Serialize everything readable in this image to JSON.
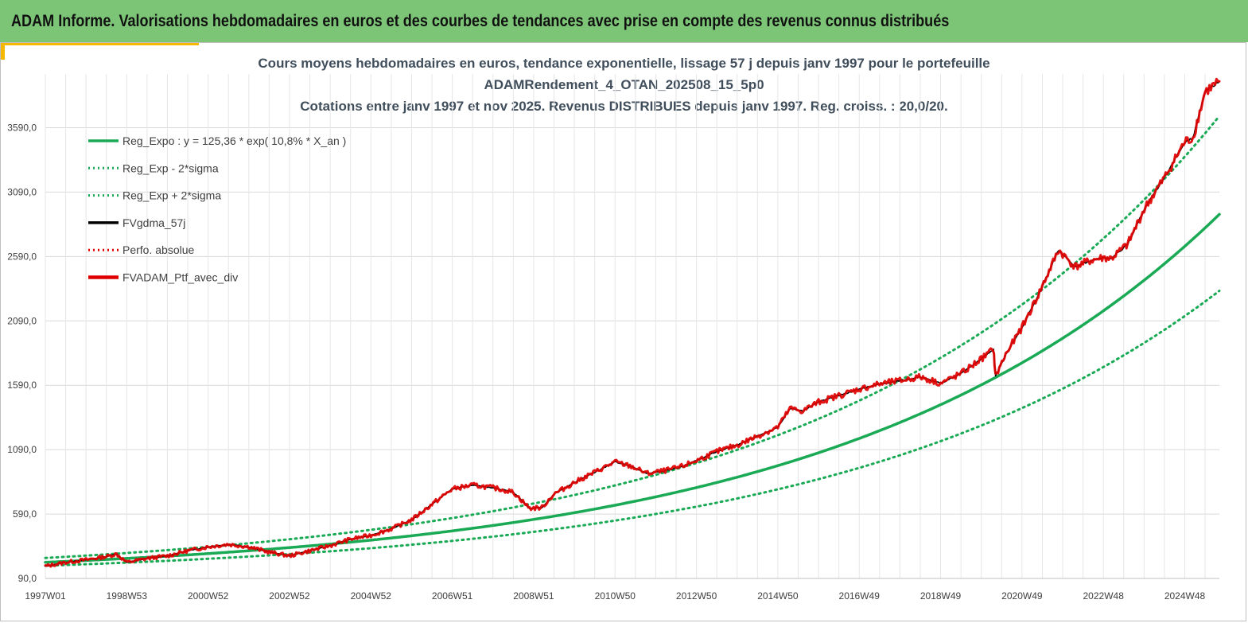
{
  "header": {
    "title": "ADAM Informe. Valorisations hebdomadaires en euros et des courbes de tendances avec prise en compte des revenus connus distribués"
  },
  "chart_data": {
    "type": "line",
    "title_lines": [
      "Cours moyens hebdomadaires  en euros, tendance exponentielle, lissage 57 j depuis janv 1997 pour le portefeuille",
      "ADAMRendement_4_OTAN_202508_15_5p0",
      "Cotations  entre janv 1997 et nov 2025. Revenus DISTRIBUES depuis janv 1997. Reg. croiss. : 20,0/20."
    ],
    "xlabel": "",
    "ylabel": "",
    "ylim": [
      90,
      3850
    ],
    "xlim": [
      1997.0,
      2025.85
    ],
    "x_tick_labels": [
      "1997W01",
      "1998W53",
      "2000W52",
      "2002W52",
      "2004W52",
      "2006W51",
      "2008W51",
      "2010W50",
      "2012W50",
      "2014W50",
      "2016W49",
      "2018W49",
      "2020W49",
      "2022W48",
      "2024W48"
    ],
    "x_tick_positions": [
      1997.0,
      1999.0,
      2001.0,
      2003.0,
      2005.0,
      2007.0,
      2009.0,
      2011.0,
      2013.0,
      2015.0,
      2017.0,
      2019.0,
      2021.0,
      2023.0,
      2025.0
    ],
    "y_ticks": [
      90,
      590,
      1090,
      1590,
      2090,
      2590,
      3090,
      3590
    ],
    "y_tick_labels": [
      "90,0",
      "590,0",
      "1090,0",
      "1590,0",
      "2090,0",
      "2590,0",
      "3090,0",
      "3590,0"
    ],
    "grid": true,
    "legend_position": "top-left",
    "regression": {
      "a": 125.36,
      "rate": 0.108,
      "x0": 1997.0,
      "sigma_factor_low": 0.79,
      "sigma_factor_high": 1.27
    },
    "series": [
      {
        "name": "Reg_Expo : y = 125,36 * exp( 10,8% *  X_an )",
        "color": "#1aaa55",
        "style": "solid",
        "kind": "reg"
      },
      {
        "name": "Reg_Exp - 2*sigma",
        "color": "#1aaa55",
        "style": "dotted",
        "kind": "reg_low"
      },
      {
        "name": "Reg_Exp + 2*sigma",
        "color": "#1aaa55",
        "style": "dotted",
        "kind": "reg_high"
      },
      {
        "name": "FVgdma_57j",
        "color": "#000000",
        "style": "solid",
        "kind": "data_smooth"
      },
      {
        "name": "Perfo. absolue",
        "color": "#e00000",
        "style": "dotted",
        "kind": "none"
      },
      {
        "name": "FVADAM_Ptf_avec_div",
        "color": "#e00000",
        "style": "solid",
        "kind": "data"
      }
    ],
    "x": [
      1997.0,
      1997.5,
      1998.0,
      1998.5,
      1998.75,
      1999.0,
      1999.5,
      2000.0,
      2000.5,
      2001.0,
      2001.5,
      2002.0,
      2002.5,
      2003.0,
      2003.5,
      2004.0,
      2004.5,
      2005.0,
      2005.5,
      2006.0,
      2006.5,
      2007.0,
      2007.5,
      2008.0,
      2008.5,
      2008.9,
      2009.2,
      2009.5,
      2010.0,
      2010.5,
      2011.0,
      2011.4,
      2011.8,
      2012.2,
      2012.6,
      2013.0,
      2013.5,
      2014.0,
      2014.5,
      2015.0,
      2015.3,
      2015.6,
      2016.0,
      2016.5,
      2017.0,
      2017.5,
      2018.0,
      2018.5,
      2019.0,
      2019.5,
      2020.0,
      2020.3,
      2020.35,
      2020.6,
      2021.0,
      2021.4,
      2021.9,
      2022.3,
      2022.7,
      2023.0,
      2023.2,
      2023.6,
      2024.0,
      2024.5,
      2025.0,
      2025.2,
      2025.5,
      2025.85
    ],
    "values": [
      185,
      215,
      235,
      260,
      280,
      215,
      245,
      265,
      305,
      335,
      355,
      335,
      295,
      265,
      305,
      345,
      395,
      425,
      475,
      545,
      665,
      785,
      815,
      795,
      760,
      635,
      640,
      745,
      835,
      915,
      995,
      960,
      905,
      925,
      955,
      1005,
      1075,
      1125,
      1195,
      1265,
      1410,
      1390,
      1460,
      1510,
      1560,
      1600,
      1625,
      1655,
      1605,
      1680,
      1795,
      1870,
      1660,
      1830,
      2040,
      2290,
      2640,
      2510,
      2560,
      2580,
      2575,
      2685,
      2955,
      3200,
      3480,
      3510,
      3870,
      3950
    ]
  }
}
